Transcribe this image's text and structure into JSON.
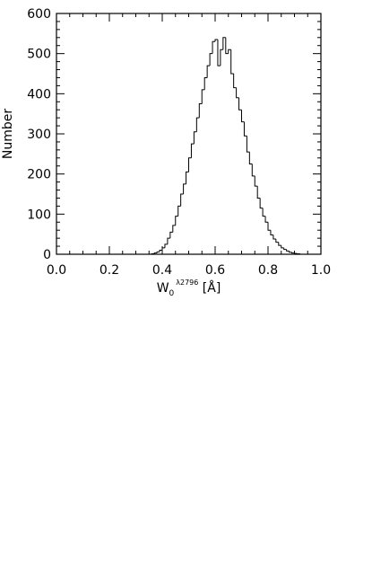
{
  "chart_data": {
    "type": "bar",
    "style": "step-histogram",
    "title": "",
    "xlabel": "W",
    "xlabel_sub": "0",
    "xlabel_sup": "λ2796",
    "xlabel_unit": "[Å]",
    "ylabel": "Number",
    "xlim": [
      0.0,
      1.0
    ],
    "ylim": [
      0,
      600
    ],
    "x_ticks": [
      "0.0",
      "0.2",
      "0.4",
      "0.6",
      "0.8",
      "1.0"
    ],
    "y_ticks": [
      "0",
      "100",
      "200",
      "300",
      "400",
      "500",
      "600"
    ],
    "bin_width": 0.01,
    "bin_starts": [
      0.36,
      0.37,
      0.38,
      0.39,
      0.4,
      0.41,
      0.42,
      0.43,
      0.44,
      0.45,
      0.46,
      0.47,
      0.48,
      0.49,
      0.5,
      0.51,
      0.52,
      0.53,
      0.54,
      0.55,
      0.56,
      0.57,
      0.58,
      0.59,
      0.6,
      0.61,
      0.62,
      0.63,
      0.64,
      0.65,
      0.66,
      0.67,
      0.68,
      0.69,
      0.7,
      0.71,
      0.72,
      0.73,
      0.74,
      0.75,
      0.76,
      0.77,
      0.78,
      0.79,
      0.8,
      0.81,
      0.82,
      0.83,
      0.84,
      0.85,
      0.86,
      0.87,
      0.88,
      0.89,
      0.9,
      0.91
    ],
    "values": [
      1,
      3,
      6,
      10,
      16,
      25,
      40,
      55,
      72,
      95,
      120,
      150,
      175,
      205,
      240,
      275,
      305,
      340,
      375,
      410,
      440,
      470,
      500,
      530,
      535,
      470,
      510,
      540,
      500,
      510,
      450,
      415,
      390,
      360,
      330,
      295,
      255,
      225,
      195,
      170,
      140,
      115,
      95,
      80,
      60,
      48,
      38,
      30,
      22,
      16,
      12,
      8,
      5,
      3,
      2,
      1
    ],
    "grid": false,
    "legend": "none",
    "line_color": "#000000"
  }
}
